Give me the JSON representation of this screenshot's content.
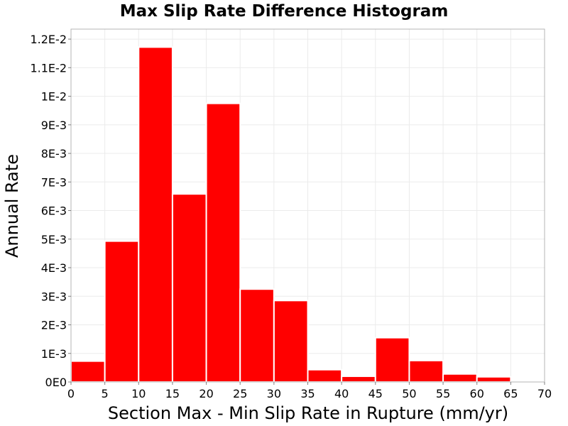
{
  "chart_data": {
    "type": "bar",
    "title": "Max Slip Rate Difference Histogram",
    "xlabel": "Section Max - Min Slip Rate in Rupture (mm/yr)",
    "ylabel": "Annual Rate",
    "xlim": [
      0,
      70
    ],
    "ylim": [
      0,
      0.01235
    ],
    "bin_width": 5,
    "x_ticks": [
      0,
      5,
      10,
      15,
      20,
      25,
      30,
      35,
      40,
      45,
      50,
      55,
      60,
      65,
      70
    ],
    "x_tick_labels": [
      "0",
      "5",
      "10",
      "15",
      "20",
      "25",
      "30",
      "35",
      "40",
      "45",
      "50",
      "55",
      "60",
      "65",
      "70"
    ],
    "y_ticks": [
      0,
      0.001,
      0.002,
      0.003,
      0.004,
      0.005,
      0.006,
      0.007,
      0.008,
      0.009,
      0.01,
      0.011,
      0.012
    ],
    "y_tick_labels": [
      "0E0",
      "1E-3",
      "2E-3",
      "3E-3",
      "4E-3",
      "5E-3",
      "6E-3",
      "7E-3",
      "8E-3",
      "9E-3",
      "1E-2",
      "1.1E-2",
      "1.2E-2"
    ],
    "bins": [
      {
        "x0": 0,
        "x1": 5,
        "value": 0.00073
      },
      {
        "x0": 5,
        "x1": 10,
        "value": 0.00493
      },
      {
        "x0": 10,
        "x1": 15,
        "value": 0.01172
      },
      {
        "x0": 15,
        "x1": 20,
        "value": 0.00658
      },
      {
        "x0": 20,
        "x1": 25,
        "value": 0.00975
      },
      {
        "x0": 25,
        "x1": 30,
        "value": 0.00325
      },
      {
        "x0": 30,
        "x1": 35,
        "value": 0.00285
      },
      {
        "x0": 35,
        "x1": 40,
        "value": 0.00043
      },
      {
        "x0": 40,
        "x1": 45,
        "value": 0.0002
      },
      {
        "x0": 45,
        "x1": 50,
        "value": 0.00155
      },
      {
        "x0": 50,
        "x1": 55,
        "value": 0.00075
      },
      {
        "x0": 55,
        "x1": 60,
        "value": 0.00028
      },
      {
        "x0": 60,
        "x1": 65,
        "value": 0.00018
      },
      {
        "x0": 65,
        "x1": 70,
        "value": 2e-05
      }
    ],
    "grid": true,
    "colors": {
      "bar": "#ff0000",
      "bar_edge": "#ffffff",
      "grid": "#ebebeb",
      "plot_border": "#b4b4b4"
    }
  }
}
